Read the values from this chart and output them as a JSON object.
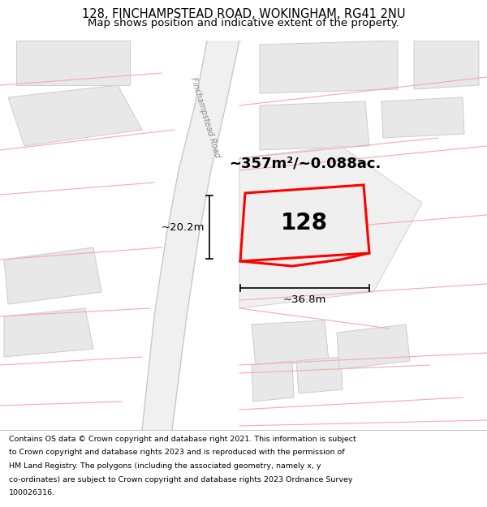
{
  "title": "128, FINCHAMPSTEAD ROAD, WOKINGHAM, RG41 2NU",
  "subtitle": "Map shows position and indicative extent of the property.",
  "footer_lines": [
    "Contains OS data © Crown copyright and database right 2021. This information is subject",
    "to Crown copyright and database rights 2023 and is reproduced with the permission of",
    "HM Land Registry. The polygons (including the associated geometry, namely x, y",
    "co-ordinates) are subject to Crown copyright and database rights 2023 Ordnance Survey",
    "100026316."
  ],
  "map_bg": "#f7f7f7",
  "bg_white": "#ffffff",
  "road_line_color": "#f5aaaa",
  "road_gray": "#c8c8c8",
  "building_fill": "#e8e8e8",
  "building_edge": "#cccccc",
  "highlight_edge": "#ff0000",
  "highlight_fill": "#efefef",
  "road_label": "Finchampstead Road",
  "property_label": "128",
  "area_label": "~357m²/~0.088ac.",
  "width_label": "~36.8m",
  "height_label": "~20.2m",
  "title_fontsize": 10.5,
  "subtitle_fontsize": 9.5,
  "footer_fontsize": 6.8,
  "area_fontsize": 13,
  "property_fontsize": 20,
  "dim_fontsize": 9.5,
  "road_fontsize": 7
}
